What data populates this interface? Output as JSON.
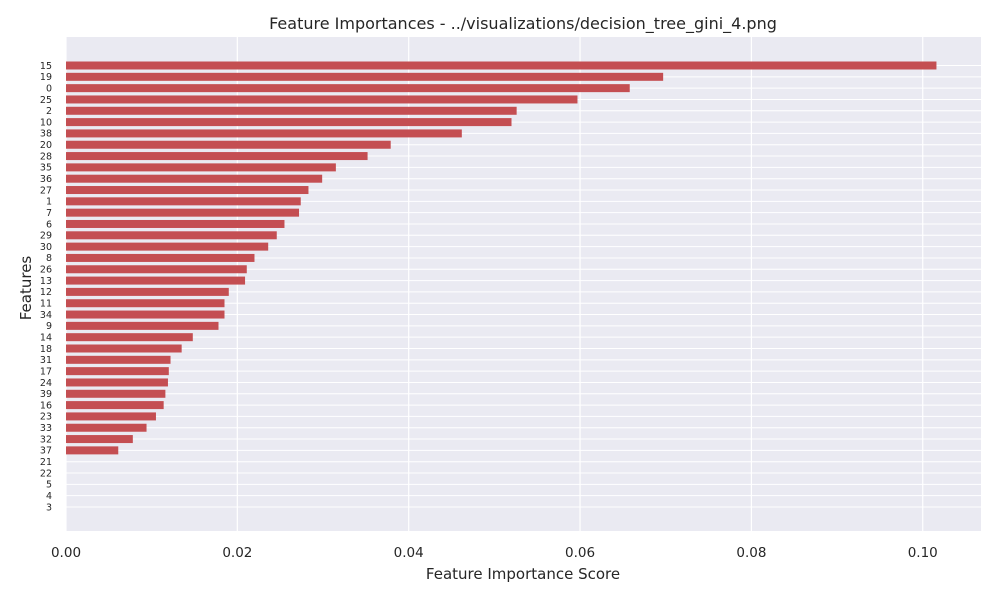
{
  "chart_data": {
    "type": "bar",
    "orientation": "horizontal",
    "title": "Feature Importances - ../visualizations/decision_tree_gini_4.png",
    "xlabel": "Feature Importance Score",
    "ylabel": "Features",
    "xlim": [
      0,
      0.1068
    ],
    "xticks": [
      "0.00",
      "0.02",
      "0.04",
      "0.06",
      "0.08",
      "0.10"
    ],
    "grid": true,
    "legend": "none",
    "bar_color": "#c44e52",
    "plot_background": "#eaeaf2",
    "categories": [
      "15",
      "19",
      "0",
      "25",
      "2",
      "10",
      "38",
      "20",
      "28",
      "35",
      "36",
      "27",
      "1",
      "7",
      "6",
      "29",
      "30",
      "8",
      "26",
      "13",
      "12",
      "11",
      "34",
      "9",
      "14",
      "18",
      "31",
      "17",
      "24",
      "39",
      "16",
      "23",
      "33",
      "32",
      "37",
      "21",
      "22",
      "5",
      "4",
      "3"
    ],
    "values": [
      0.1016,
      0.0697,
      0.0658,
      0.0597,
      0.0526,
      0.052,
      0.0462,
      0.0379,
      0.0352,
      0.0315,
      0.0299,
      0.0283,
      0.0274,
      0.0272,
      0.0255,
      0.0246,
      0.0236,
      0.022,
      0.0211,
      0.0209,
      0.019,
      0.0185,
      0.0185,
      0.0178,
      0.0148,
      0.0135,
      0.0122,
      0.012,
      0.0119,
      0.0116,
      0.0114,
      0.0105,
      0.0094,
      0.0078,
      0.0061,
      0,
      0,
      0,
      0,
      0
    ]
  }
}
